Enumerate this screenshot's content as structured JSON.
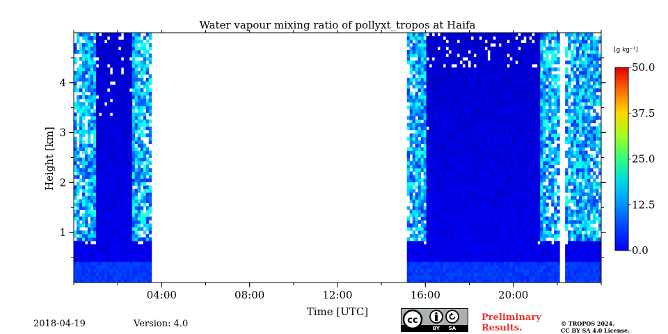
{
  "chart_data": {
    "type": "heatmap",
    "title": "Water vapour mixing ratio of pollyxt_tropos at Haifa",
    "xlabel": "Time [UTC]",
    "ylabel": "Height [km]",
    "x_tick_labels": [
      "04:00",
      "08:00",
      "12:00",
      "16:00",
      "20:00"
    ],
    "x_tick_values_hours": [
      4,
      8,
      12,
      16,
      20
    ],
    "xlim_hours": [
      0,
      24
    ],
    "y_tick_labels": [
      "1",
      "2",
      "3",
      "4"
    ],
    "y_tick_values_km": [
      1,
      2,
      3,
      4
    ],
    "ylim_km": [
      0,
      5
    ],
    "colorbar": {
      "unit_label": "[g kg⁻¹]",
      "tick_labels": [
        "50.0",
        "37.5",
        "25.0",
        "12.5",
        "0.0"
      ],
      "tick_values": [
        50.0,
        37.5,
        25.0,
        12.5,
        0.0
      ],
      "range": [
        0,
        50
      ],
      "colormap": "jet"
    },
    "data_segments_hours": [
      [
        0,
        3.5
      ],
      [
        15.1,
        22.0
      ],
      [
        22.3,
        24
      ]
    ],
    "typical_values_g_per_kg": {
      "near_surface": 8,
      "lower_troposphere": 5,
      "upper_noisy": 14
    }
  },
  "footer": {
    "date": "2018-04-19",
    "version": "Version: 4.0",
    "preliminary_line1": "Preliminary",
    "preliminary_line2": "Results.",
    "copyright_line1": "© TROPOS 2024.",
    "copyright_line2": "CC BY SA 4.0 License.",
    "cc_text": "cc",
    "by_text": "BY",
    "sa_text": "SA"
  },
  "colors": {
    "background": "#ffffff",
    "preliminary_text": "#e8322c",
    "badge": "#aab2ab"
  }
}
